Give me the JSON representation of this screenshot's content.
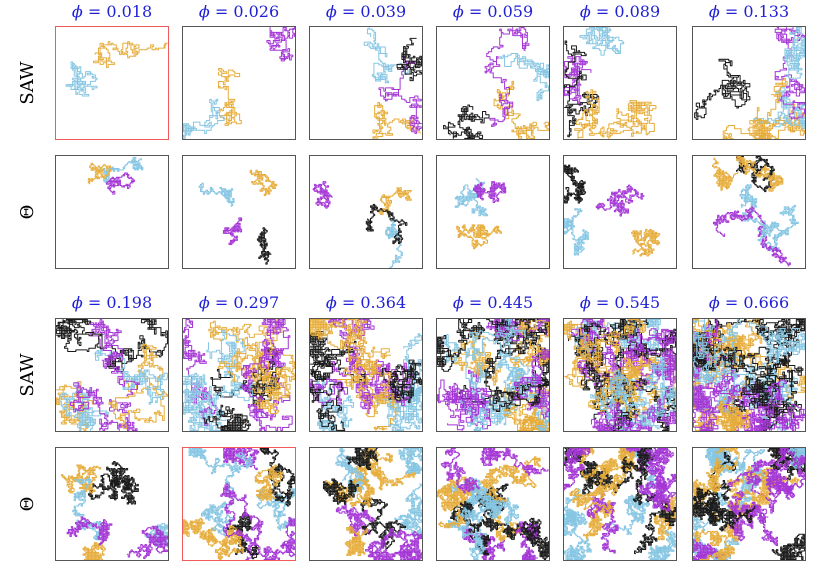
{
  "figure": {
    "phi_symbol": "ϕ",
    "row_labels": [
      "SAW",
      "Θ",
      "SAW",
      "Θ"
    ],
    "column_values_top": [
      "0.018",
      "0.026",
      "0.039",
      "0.059",
      "0.089",
      "0.133"
    ],
    "column_values_bottom": [
      "0.198",
      "0.297",
      "0.364",
      "0.445",
      "0.545",
      "0.666"
    ],
    "highlighted_panels": [
      "top-saw-0.018",
      "bottom-theta-0.297"
    ]
  },
  "colors": {
    "chain_purple": "#a537d6",
    "chain_orange": "#e6ad3c",
    "chain_blue": "#86c6e3",
    "chain_black": "#1a1a1a",
    "label_blue": "#1f1fd6",
    "highlight_border": "#f05a5a",
    "panel_border": "#555555"
  },
  "panels": [
    {
      "block": "top",
      "model": "SAW",
      "phi": 0.018,
      "chains": 2
    },
    {
      "block": "top",
      "model": "SAW",
      "phi": 0.026,
      "chains": 3
    },
    {
      "block": "top",
      "model": "SAW",
      "phi": 0.039,
      "chains": 4
    },
    {
      "block": "top",
      "model": "SAW",
      "phi": 0.059,
      "chains": 4
    },
    {
      "block": "top",
      "model": "SAW",
      "phi": 0.089,
      "chains": 5
    },
    {
      "block": "top",
      "model": "SAW",
      "phi": 0.133,
      "chains": 6
    },
    {
      "block": "top",
      "model": "Θ",
      "phi": 0.018,
      "chains": 3
    },
    {
      "block": "top",
      "model": "Θ",
      "phi": 0.026,
      "chains": 4
    },
    {
      "block": "top",
      "model": "Θ",
      "phi": 0.039,
      "chains": 4
    },
    {
      "block": "top",
      "model": "Θ",
      "phi": 0.059,
      "chains": 3
    },
    {
      "block": "top",
      "model": "Θ",
      "phi": 0.089,
      "chains": 4
    },
    {
      "block": "top",
      "model": "Θ",
      "phi": 0.133,
      "chains": 6
    },
    {
      "block": "bottom",
      "model": "SAW",
      "phi": 0.198,
      "chains": 8
    },
    {
      "block": "bottom",
      "model": "SAW",
      "phi": 0.297,
      "chains": 11
    },
    {
      "block": "bottom",
      "model": "SAW",
      "phi": 0.364,
      "chains": 13
    },
    {
      "block": "bottom",
      "model": "SAW",
      "phi": 0.445,
      "chains": 16
    },
    {
      "block": "bottom",
      "model": "SAW",
      "phi": 0.545,
      "chains": 19
    },
    {
      "block": "bottom",
      "model": "SAW",
      "phi": 0.666,
      "chains": 24
    },
    {
      "block": "bottom",
      "model": "Θ",
      "phi": 0.198,
      "chains": 8
    },
    {
      "block": "bottom",
      "model": "Θ",
      "phi": 0.297,
      "chains": 11
    },
    {
      "block": "bottom",
      "model": "Θ",
      "phi": 0.364,
      "chains": 13
    },
    {
      "block": "bottom",
      "model": "Θ",
      "phi": 0.445,
      "chains": 16
    },
    {
      "block": "bottom",
      "model": "Θ",
      "phi": 0.545,
      "chains": 19
    },
    {
      "block": "bottom",
      "model": "Θ",
      "phi": 0.666,
      "chains": 24
    }
  ]
}
